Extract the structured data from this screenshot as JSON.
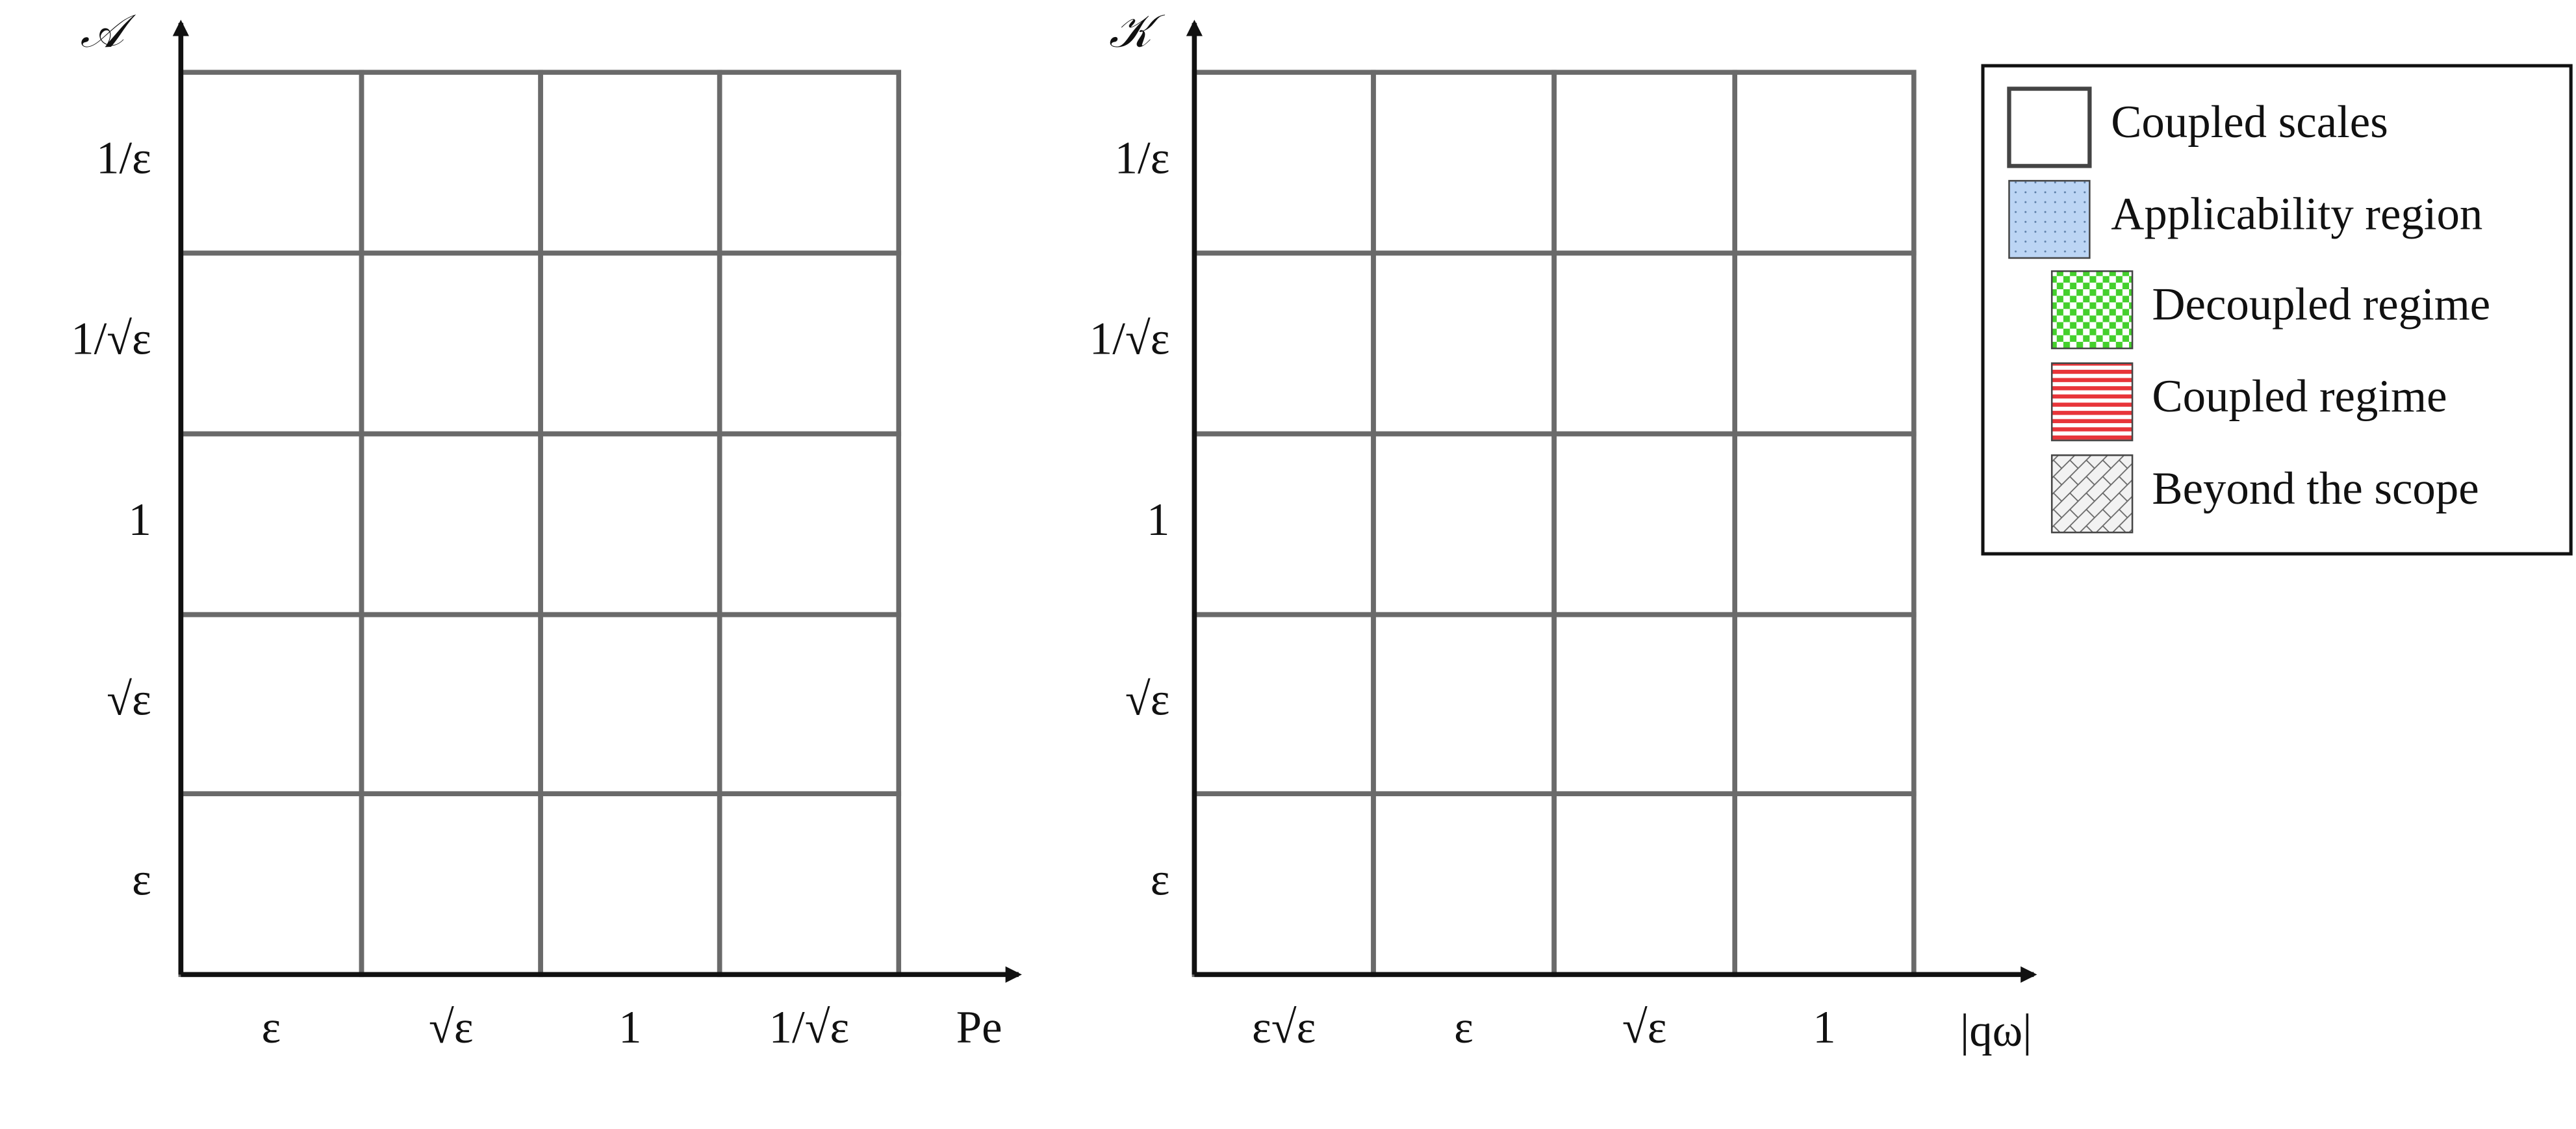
{
  "left_panel": {
    "y_axis_label": "𝒜",
    "x_axis_label": "Pe",
    "row_labels": [
      "1/ε",
      "1/√ε",
      "1",
      "√ε",
      "ε"
    ],
    "column_labels": [
      "ε",
      "√ε",
      "1",
      "1/√ε"
    ]
  },
  "right_panel": {
    "y_axis_label": "𝒦",
    "x_axis_label": "|qω|",
    "row_labels": [
      "1/ε",
      "1/√ε",
      "1",
      "√ε",
      "ε"
    ],
    "column_labels": [
      "ε√ε",
      "ε",
      "√ε",
      "1"
    ]
  },
  "legend": {
    "items": [
      "Coupled scales",
      "Applicability region",
      "Decoupled regime",
      "Coupled regime",
      "Beyond the scope"
    ]
  }
}
